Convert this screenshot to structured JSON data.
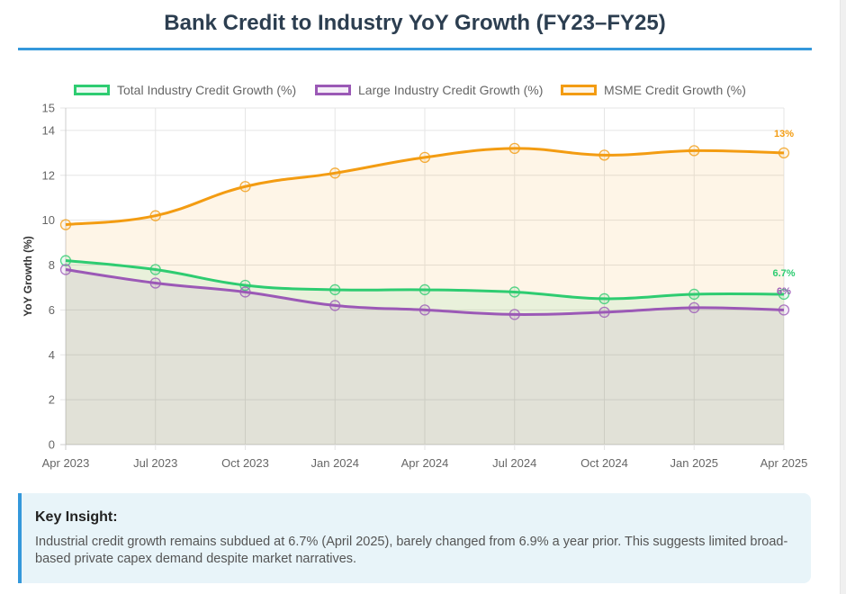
{
  "title": "Bank Credit to Industry YoY Growth (FY23–FY25)",
  "colors": {
    "accent": "#3498db",
    "title": "#2c3e50",
    "total": "#2ecc71",
    "large": "#9b59b6",
    "msme": "#f39c12"
  },
  "chart_data": {
    "type": "line",
    "title": "Bank Credit to Industry YoY Growth (FY23–FY25)",
    "xlabel": "",
    "ylabel": "YoY Growth (%)",
    "ylim": [
      0,
      15
    ],
    "yticks": [
      0,
      2,
      4,
      6,
      8,
      10,
      12,
      14,
      15
    ],
    "grid": true,
    "legend_position": "top",
    "categories": [
      "Apr 2023",
      "Jul 2023",
      "Oct 2023",
      "Jan 2024",
      "Apr 2024",
      "Jul 2024",
      "Oct 2024",
      "Jan 2025",
      "Apr 2025"
    ],
    "series": [
      {
        "name": "Total Industry Credit Growth (%)",
        "color": "#2ecc71",
        "fill": "rgba(46,204,113,0.1)",
        "values": [
          8.2,
          7.8,
          7.1,
          6.9,
          6.9,
          6.8,
          6.5,
          6.7,
          6.7
        ],
        "end_label": "6.7%"
      },
      {
        "name": "Large Industry Credit Growth (%)",
        "color": "#9b59b6",
        "fill": "rgba(155,89,182,0.1)",
        "values": [
          7.8,
          7.2,
          6.8,
          6.2,
          6.0,
          5.8,
          5.9,
          6.1,
          6.0
        ],
        "end_label": "6%"
      },
      {
        "name": "MSME Credit Growth (%)",
        "color": "#f39c12",
        "fill": "rgba(243,156,18,0.1)",
        "values": [
          9.8,
          10.2,
          11.5,
          12.1,
          12.8,
          13.2,
          12.9,
          13.1,
          13.0
        ],
        "end_label": "13%"
      }
    ]
  },
  "insight": {
    "title": "Key Insight:",
    "text": "Industrial credit growth remains subdued at 6.7% (April 2025), barely changed from 6.9% a year prior. This suggests limited broad-based private capex demand despite market narratives."
  }
}
